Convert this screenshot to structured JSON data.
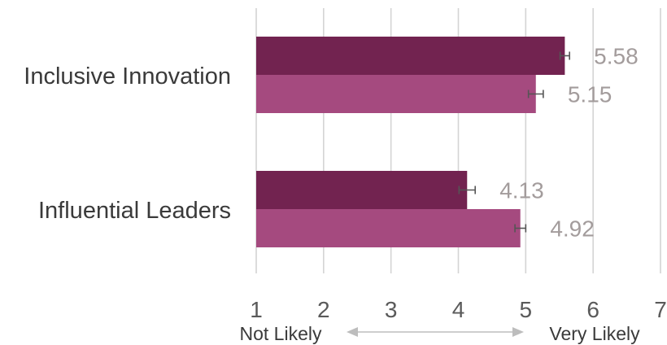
{
  "chart_data": {
    "type": "bar",
    "orientation": "horizontal",
    "categories": [
      "Inclusive Innovation",
      "Influential Leaders"
    ],
    "series": [
      {
        "values": [
          5.58,
          4.13
        ],
        "errors": [
          0.07,
          0.12
        ],
        "color": "#722350"
      },
      {
        "values": [
          5.15,
          4.92
        ],
        "errors": [
          0.11,
          0.08
        ],
        "color": "#a54a7f"
      }
    ],
    "data_labels": [
      [
        "5.58",
        "4.13"
      ],
      [
        "5.15",
        "4.92"
      ]
    ],
    "xlim": [
      1,
      7
    ],
    "ticks": [
      "1",
      "2",
      "3",
      "4",
      "5",
      "6",
      "7"
    ],
    "grid": true,
    "scale_low_label": "Not Likely",
    "scale_high_label": "Very Likely"
  }
}
